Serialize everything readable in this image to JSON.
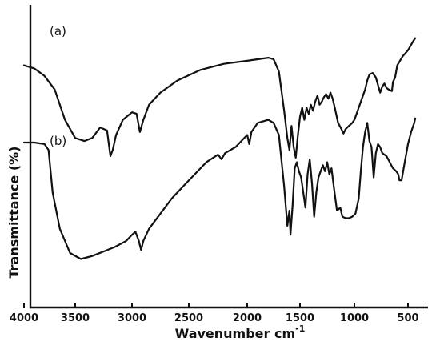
{
  "chart_data": {
    "type": "line",
    "xlabel": "Wavenumber cm",
    "xlabel_superscript": "-1",
    "ylabel": "Transmittance (%)",
    "xlim": [
      4000,
      400
    ],
    "x_reversed": true,
    "y_ticks_shown": false,
    "grid": false,
    "tick_labels": [
      "4000",
      "3500",
      "3000",
      "2500",
      "2000",
      "1500",
      "1000",
      "500"
    ],
    "tick_values": [
      4000,
      3500,
      3000,
      2500,
      2000,
      1500,
      1000,
      500
    ],
    "series": [
      {
        "name": "(a)",
        "points": [
          [
            4000,
            80.0
          ],
          [
            3900,
            79.0
          ],
          [
            3800,
            76.5
          ],
          [
            3700,
            72.0
          ],
          [
            3600,
            62.0
          ],
          [
            3500,
            56.0
          ],
          [
            3420,
            55.0
          ],
          [
            3350,
            56.0
          ],
          [
            3280,
            59.5
          ],
          [
            3220,
            58.5
          ],
          [
            3190,
            50.0
          ],
          [
            3170,
            52.0
          ],
          [
            3140,
            57.0
          ],
          [
            3080,
            62.0
          ],
          [
            3000,
            64.5
          ],
          [
            2960,
            64.0
          ],
          [
            2930,
            58.0
          ],
          [
            2900,
            62.0
          ],
          [
            2850,
            67.0
          ],
          [
            2750,
            71.0
          ],
          [
            2600,
            75.0
          ],
          [
            2400,
            78.5
          ],
          [
            2200,
            80.5
          ],
          [
            2000,
            81.5
          ],
          [
            1900,
            82.0
          ],
          [
            1800,
            82.5
          ],
          [
            1750,
            82.0
          ],
          [
            1700,
            78.0
          ],
          [
            1650,
            65.0
          ],
          [
            1620,
            56.0
          ],
          [
            1600,
            52.0
          ],
          [
            1580,
            60.0
          ],
          [
            1560,
            53.0
          ],
          [
            1540,
            49.5
          ],
          [
            1520,
            57.0
          ],
          [
            1500,
            63.0
          ],
          [
            1480,
            66.0
          ],
          [
            1460,
            62.0
          ],
          [
            1440,
            66.0
          ],
          [
            1420,
            64.0
          ],
          [
            1400,
            67.0
          ],
          [
            1380,
            65.0
          ],
          [
            1360,
            68.0
          ],
          [
            1340,
            70.0
          ],
          [
            1320,
            67.0
          ],
          [
            1300,
            68.0
          ],
          [
            1280,
            69.5
          ],
          [
            1260,
            70.5
          ],
          [
            1240,
            69.0
          ],
          [
            1220,
            71.0
          ],
          [
            1200,
            69.0
          ],
          [
            1180,
            66.0
          ],
          [
            1150,
            61.0
          ],
          [
            1120,
            59.0
          ],
          [
            1100,
            57.5
          ],
          [
            1080,
            59.0
          ],
          [
            1050,
            60.0
          ],
          [
            1020,
            61.0
          ],
          [
            1000,
            62.0
          ],
          [
            980,
            64.0
          ],
          [
            950,
            67.0
          ],
          [
            920,
            70.0
          ],
          [
            900,
            72.0
          ],
          [
            880,
            75.0
          ],
          [
            860,
            77.0
          ],
          [
            830,
            77.5
          ],
          [
            800,
            76.0
          ],
          [
            760,
            71.0
          ],
          [
            740,
            73.0
          ],
          [
            720,
            74.0
          ],
          [
            700,
            72.5
          ],
          [
            680,
            72.0
          ],
          [
            650,
            71.5
          ],
          [
            640,
            74.5
          ],
          [
            620,
            76.0
          ],
          [
            600,
            80.0
          ],
          [
            550,
            83.0
          ],
          [
            500,
            85.0
          ],
          [
            450,
            88.0
          ],
          [
            430,
            89.0
          ]
        ]
      },
      {
        "name": "(b)",
        "points": [
          [
            4000,
            54.5
          ],
          [
            3900,
            54.5
          ],
          [
            3800,
            54.0
          ],
          [
            3760,
            52.0
          ],
          [
            3720,
            38.0
          ],
          [
            3650,
            26.0
          ],
          [
            3550,
            18.0
          ],
          [
            3450,
            16.0
          ],
          [
            3350,
            17.0
          ],
          [
            3250,
            18.5
          ],
          [
            3150,
            20.0
          ],
          [
            3050,
            22.0
          ],
          [
            3000,
            24.0
          ],
          [
            2970,
            25.0
          ],
          [
            2940,
            22.0
          ],
          [
            2920,
            19.0
          ],
          [
            2900,
            22.0
          ],
          [
            2850,
            26.0
          ],
          [
            2750,
            31.0
          ],
          [
            2650,
            36.0
          ],
          [
            2550,
            40.0
          ],
          [
            2450,
            44.0
          ],
          [
            2350,
            48.0
          ],
          [
            2250,
            50.5
          ],
          [
            2220,
            49.0
          ],
          [
            2190,
            51.0
          ],
          [
            2100,
            53.0
          ],
          [
            2050,
            55.0
          ],
          [
            2000,
            57.0
          ],
          [
            1980,
            54.0
          ],
          [
            1960,
            58.0
          ],
          [
            1900,
            61.0
          ],
          [
            1800,
            62.0
          ],
          [
            1750,
            61.0
          ],
          [
            1700,
            57.0
          ],
          [
            1650,
            40.0
          ],
          [
            1620,
            27.0
          ],
          [
            1600,
            32.0
          ],
          [
            1590,
            24.0
          ],
          [
            1570,
            34.0
          ],
          [
            1550,
            46.0
          ],
          [
            1530,
            48.0
          ],
          [
            1510,
            45.0
          ],
          [
            1490,
            43.0
          ],
          [
            1470,
            38.0
          ],
          [
            1450,
            33.0
          ],
          [
            1430,
            44.0
          ],
          [
            1410,
            49.0
          ],
          [
            1390,
            41.0
          ],
          [
            1370,
            30.0
          ],
          [
            1350,
            38.0
          ],
          [
            1330,
            43.0
          ],
          [
            1310,
            45.0
          ],
          [
            1290,
            47.0
          ],
          [
            1270,
            45.0
          ],
          [
            1250,
            48.0
          ],
          [
            1230,
            44.0
          ],
          [
            1210,
            46.0
          ],
          [
            1190,
            40.0
          ],
          [
            1160,
            32.0
          ],
          [
            1130,
            33.0
          ],
          [
            1110,
            30.0
          ],
          [
            1080,
            29.5
          ],
          [
            1050,
            29.5
          ],
          [
            1020,
            30.0
          ],
          [
            990,
            31.0
          ],
          [
            960,
            36.0
          ],
          [
            940,
            45.0
          ],
          [
            920,
            53.0
          ],
          [
            900,
            58.0
          ],
          [
            880,
            61.0
          ],
          [
            860,
            55.0
          ],
          [
            840,
            53.0
          ],
          [
            820,
            43.0
          ],
          [
            800,
            51.0
          ],
          [
            780,
            54.0
          ],
          [
            760,
            53.0
          ],
          [
            740,
            51.0
          ],
          [
            700,
            50.0
          ],
          [
            670,
            48.0
          ],
          [
            640,
            46.0
          ],
          [
            610,
            45.0
          ],
          [
            590,
            44.0
          ],
          [
            580,
            42.0
          ],
          [
            560,
            42.0
          ],
          [
            540,
            46.0
          ],
          [
            500,
            54.0
          ],
          [
            470,
            58.0
          ],
          [
            440,
            61.0
          ],
          [
            430,
            62.5
          ]
        ]
      }
    ]
  }
}
